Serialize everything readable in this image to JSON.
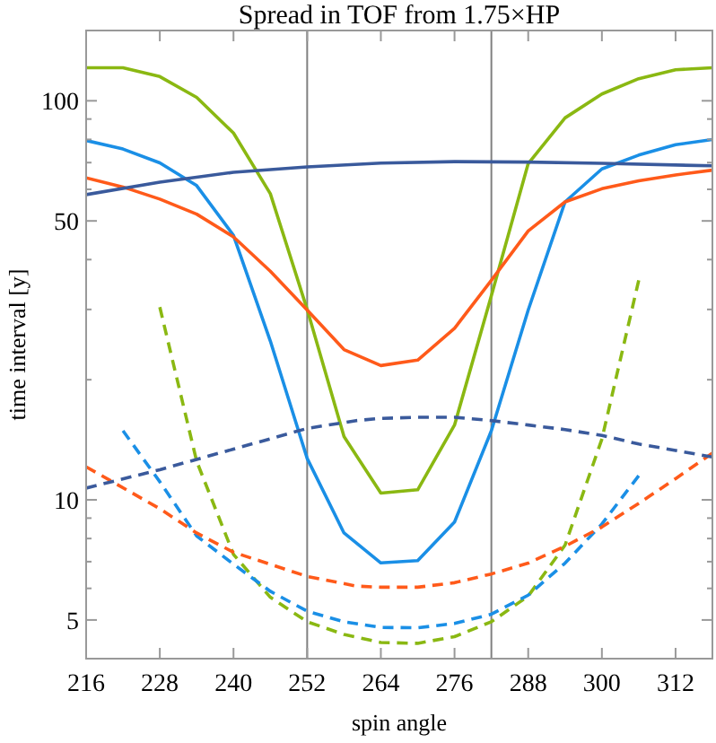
{
  "chart_data": {
    "type": "line",
    "title": "Spread in TOF from 1.75×HP",
    "xlabel": "spin angle",
    "ylabel": "time interval [y]",
    "log": "y",
    "xlim": [
      216,
      318
    ],
    "ylim": [
      4,
      150
    ],
    "xticks": [
      216,
      228,
      240,
      252,
      264,
      276,
      288,
      300,
      312
    ],
    "yticks": [
      5,
      {
        "value": 6,
        "label": null
      },
      {
        "value": 7,
        "label": null
      },
      {
        "value": 8,
        "label": null
      },
      {
        "value": 9,
        "label": null
      },
      10,
      {
        "value": 20,
        "label": null
      },
      {
        "value": 30,
        "label": null
      },
      {
        "value": 40,
        "label": null
      },
      50,
      {
        "value": 60,
        "label": null
      },
      {
        "value": 70,
        "label": null
      },
      {
        "value": 80,
        "label": null
      },
      {
        "value": 90,
        "label": null
      },
      100
    ],
    "grid": false,
    "marker": "none",
    "ref_lines": [
      {
        "axis": "x",
        "value": 252,
        "label": null,
        "color": "#808080"
      },
      {
        "axis": "x",
        "value": 282,
        "label": null,
        "color": "#808080"
      }
    ],
    "series": [
      {
        "color": "#8ab812",
        "line_style": "solid",
        "x": [
          216,
          222,
          228,
          234,
          240,
          246,
          252,
          258,
          264,
          270,
          276,
          282,
          288,
          294,
          300,
          306,
          312,
          318
        ],
        "values": [
          121,
          121,
          115,
          102,
          83,
          58.5,
          30,
          14.4,
          10.4,
          10.6,
          15.4,
          32.5,
          69.6,
          90.6,
          104,
          113.6,
          119.6,
          121
        ]
      },
      {
        "color": "#1a8fe6",
        "line_style": "solid",
        "x": [
          216,
          222,
          228,
          234,
          240,
          246,
          252,
          258,
          264,
          270,
          276,
          282,
          288,
          294,
          300,
          306,
          312,
          318
        ],
        "values": [
          79.5,
          75.7,
          69.9,
          61.3,
          46,
          25,
          12.7,
          8.26,
          6.95,
          7.04,
          8.8,
          14.9,
          29.9,
          55.8,
          67.5,
          73.1,
          77.6,
          80
        ]
      },
      {
        "color": "#ff5a1a",
        "line_style": "solid",
        "x": [
          216,
          222,
          228,
          234,
          240,
          246,
          252,
          258,
          264,
          270,
          276,
          282,
          288,
          294,
          300,
          306,
          312,
          318
        ],
        "values": [
          64.1,
          60.8,
          56.7,
          52,
          45.6,
          37.4,
          29.9,
          23.8,
          21.7,
          22.4,
          26.9,
          35.5,
          47.2,
          55.8,
          60.2,
          63,
          65.2,
          67
        ]
      },
      {
        "color": "#3a5a9c",
        "line_style": "solid",
        "x": [
          216,
          228,
          240,
          252,
          264,
          276,
          288,
          300,
          318
        ],
        "values": [
          58.2,
          62.5,
          66.2,
          68.3,
          69.8,
          70.4,
          70.2,
          69.7,
          68.7
        ]
      },
      {
        "color": "#8ab812",
        "line_style": "dashed",
        "x": [
          228,
          234,
          240,
          246,
          252,
          258,
          264,
          270,
          276,
          282,
          288,
          294,
          300,
          306
        ],
        "values": [
          30.4,
          12.5,
          7.3,
          5.7,
          4.95,
          4.6,
          4.39,
          4.37,
          4.54,
          4.95,
          5.74,
          7.7,
          14.2,
          35.5
        ]
      },
      {
        "color": "#1a8fe6",
        "line_style": "dashed",
        "x": [
          222,
          228,
          234,
          240,
          246,
          252,
          258,
          264,
          270,
          276,
          282,
          288,
          294,
          300,
          306
        ],
        "values": [
          14.9,
          11.1,
          8.12,
          6.9,
          5.9,
          5.26,
          4.95,
          4.79,
          4.78,
          4.9,
          5.17,
          5.77,
          6.94,
          8.7,
          11.5
        ]
      },
      {
        "color": "#ff5a1a",
        "line_style": "dashed",
        "x": [
          216,
          228,
          234,
          240,
          252,
          260,
          264,
          270,
          276,
          282,
          288,
          294,
          300,
          306,
          312,
          318
        ],
        "values": [
          12.1,
          9.5,
          8.26,
          7.39,
          6.43,
          6.08,
          6.04,
          6.04,
          6.2,
          6.52,
          6.94,
          7.65,
          8.55,
          9.8,
          11.3,
          13.1
        ]
      },
      {
        "color": "#3a5a9c",
        "line_style": "dashed",
        "x": [
          216,
          228,
          240,
          252,
          260,
          264,
          270,
          276,
          282,
          288,
          294,
          300,
          306,
          312,
          318
        ],
        "values": [
          10.7,
          11.9,
          13.4,
          15.1,
          15.8,
          16,
          16.1,
          16.1,
          15.8,
          15.4,
          15,
          14.5,
          13.8,
          13.3,
          12.8
        ]
      }
    ]
  }
}
